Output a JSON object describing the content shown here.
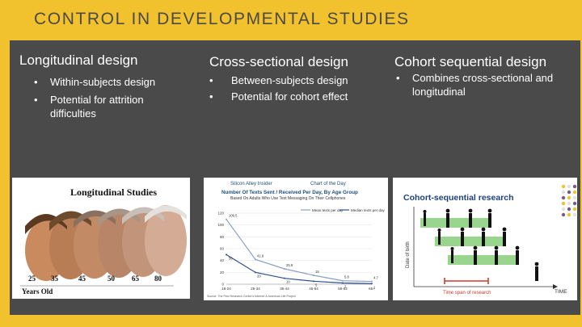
{
  "slide": {
    "title": "CONTROL IN DEVELOPMENTAL STUDIES"
  },
  "columns": [
    {
      "title": "Longitudinal design",
      "bullets": [
        "Within-subjects design",
        "Potential for attrition difficulties"
      ]
    },
    {
      "title": "Cross-sectional design",
      "bullets": [
        "Between-subjects design",
        "Potential for cohort effect"
      ]
    },
    {
      "title": "Cohort sequential design",
      "bullets": [
        "Combines cross-sectional and longitudinal"
      ]
    }
  ],
  "bullet_glyph": "•",
  "image1": {
    "title": "Longitudinal Studies",
    "ages": [
      "25",
      "35",
      "45",
      "50",
      "65",
      "80"
    ],
    "caption": "Years Old"
  },
  "image2": {
    "brand": "Silicon Alley Insider",
    "badge": "Chart of the Day",
    "title": "Number Of Texts Sent / Received Per Day, By Age Group",
    "subtitle": "Based On Adults Who Use Text Messaging On Their Cellphones",
    "legend": [
      "Mean texts per day",
      "Median texts per day"
    ],
    "source": "Source: The Pew Research Center's Internet & American Life Project"
  },
  "chart_data": {
    "type": "line",
    "categories": [
      "18-24",
      "25-34",
      "35-44",
      "45-54",
      "55-64",
      "65+"
    ],
    "series": [
      {
        "name": "Mean texts per day",
        "values": [
          109.5,
          41.8,
          25.9,
          15,
          5.8,
          4.7
        ],
        "color": "#8aa0c8"
      },
      {
        "name": "Median texts per day",
        "values": [
          50,
          20,
          10,
          5,
          2,
          1
        ],
        "color": "#2f4f8f"
      }
    ],
    "data_labels": [
      "109.5",
      "41.8",
      "25.9",
      "15",
      "5.8",
      "4.7",
      "50",
      "20",
      "10",
      "5",
      "2",
      "1"
    ],
    "yticks": [
      "120",
      "100",
      "80",
      "60",
      "40",
      "20",
      "0"
    ],
    "ylim": [
      0,
      120
    ]
  },
  "image3": {
    "title": "Cohort-sequential research",
    "y_axis": "Date of birth",
    "x_axis": "TIME",
    "timespan": "Time span of research"
  }
}
